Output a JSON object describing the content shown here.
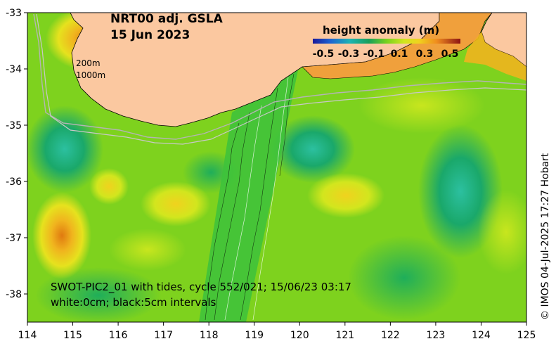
{
  "title": {
    "line1": "NRT00 adj. GSLA",
    "line2": "15 Jun 2023"
  },
  "colorbar": {
    "title": "height anomaly (m)",
    "tick_labels": [
      "-0.5",
      "-0.3",
      "-0.1",
      "0.1",
      "0.3",
      "0.5"
    ],
    "tick_values": [
      -0.5,
      -0.3,
      -0.1,
      0.1,
      0.3,
      0.5
    ],
    "range": [
      -0.5,
      0.5
    ]
  },
  "isobaths": {
    "label_200": "200m",
    "label_1000": "1000m"
  },
  "swath_note": {
    "line1": "SWOT-PIC2_01 with tides, cycle 552/021; 15/06/23 03:17",
    "line2": "white:0cm; black:5cm intervals"
  },
  "credit": "© IMOS 04-Jul-2025 17:27 Hobart",
  "axes": {
    "x_ticks": [
      114,
      115,
      116,
      117,
      118,
      119,
      120,
      121,
      122,
      123,
      124,
      125
    ],
    "x_labels": [
      "114",
      "115",
      "116",
      "117",
      "118",
      "119",
      "120",
      "121",
      "122",
      "123",
      "124",
      "125"
    ],
    "y_ticks": [
      -33,
      -34,
      -35,
      -36,
      -37,
      -38
    ],
    "y_labels": [
      "-33",
      "-34",
      "-35",
      "-36",
      "-37",
      "-38"
    ],
    "lon_range": [
      114,
      125
    ],
    "lat_range": [
      -38.5,
      -33
    ]
  },
  "colors": {
    "land": "#fbc8a0",
    "background_ocean": "#7ed21e",
    "axis": "#000000"
  }
}
